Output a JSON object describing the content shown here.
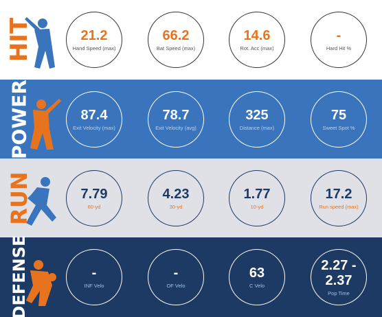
{
  "rows": [
    {
      "label": "HIT",
      "stats": [
        {
          "value": 21.2,
          "label": "Hand Speed (max)"
        },
        {
          "value": 66.2,
          "label": "Bat Speed (max)"
        },
        {
          "value": 14.6,
          "label": "Rot. Acc (max)"
        },
        {
          "value": "-",
          "label": "Hard Hit %"
        }
      ]
    },
    {
      "label": "POWER",
      "stats": [
        {
          "value": 87.4,
          "label": "Exit Velocity (max)"
        },
        {
          "value": 78.7,
          "label": "Exit Velocity (avg)"
        },
        {
          "value": 325,
          "label": "Distance (max)"
        },
        {
          "value": 75,
          "label": "Sweet Spot %"
        }
      ]
    },
    {
      "label": "RUN",
      "stats": [
        {
          "value": 7.79,
          "label": "60-yd"
        },
        {
          "value": 4.23,
          "label": "30-yd"
        },
        {
          "value": 1.77,
          "label": "10-yd"
        },
        {
          "value": 17.2,
          "label": "Run speed (max)"
        }
      ]
    },
    {
      "label": "DEFENSE",
      "stats": [
        {
          "value": "-",
          "label": "INF Velo"
        },
        {
          "value": "-",
          "label": "OF Velo"
        },
        {
          "value": 63,
          "label": "C Velo"
        },
        {
          "value": "2.27 - 2.37",
          "label": "Pop Time"
        }
      ]
    }
  ]
}
